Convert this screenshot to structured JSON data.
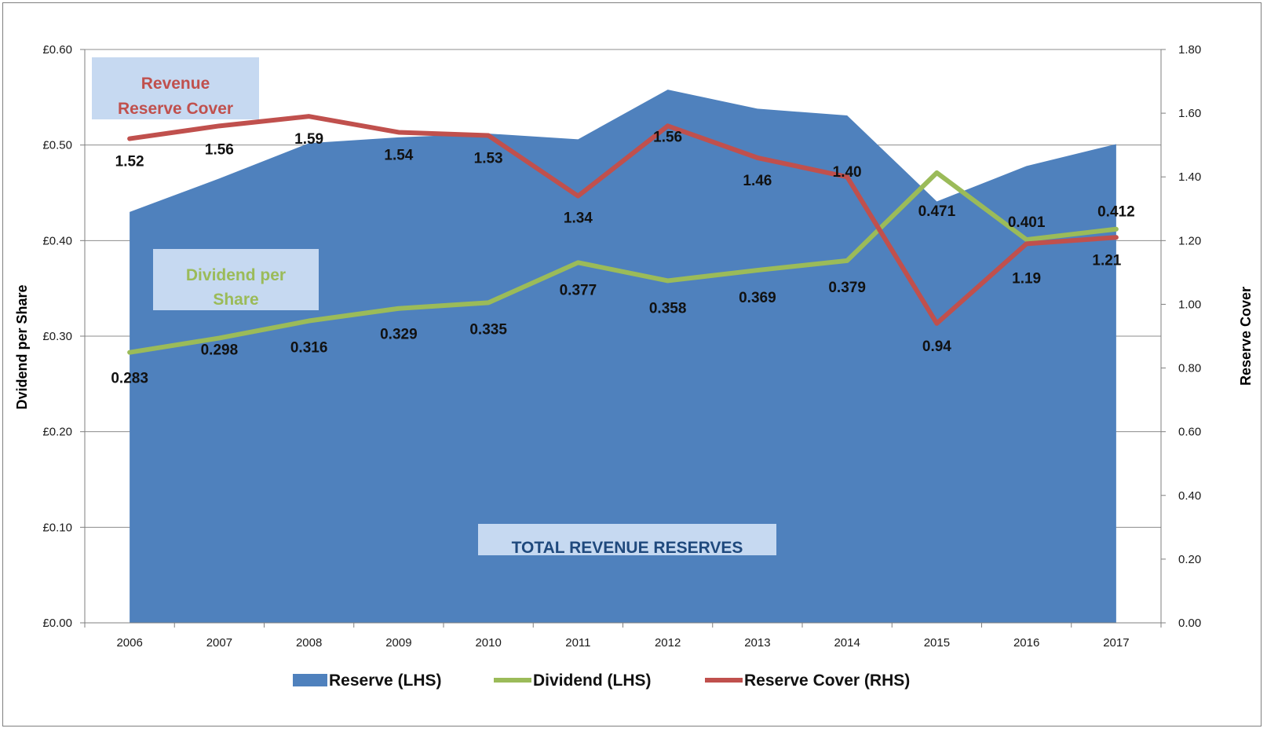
{
  "chart_data": {
    "type": "area",
    "categories": [
      "2006",
      "2007",
      "2008",
      "2009",
      "2010",
      "2011",
      "2012",
      "2013",
      "2014",
      "2015",
      "2016",
      "2017"
    ],
    "series": [
      {
        "name": "Reserve (LHS)",
        "kind": "area",
        "axis": "left",
        "color": "#4f81bd",
        "values": [
          0.43,
          0.465,
          0.502,
          0.508,
          0.512,
          0.506,
          0.558,
          0.538,
          0.531,
          0.441,
          0.478,
          0.501
        ]
      },
      {
        "name": "Dividend (LHS)",
        "kind": "line",
        "axis": "left",
        "color": "#9bbb59",
        "values": [
          0.283,
          0.298,
          0.316,
          0.329,
          0.335,
          0.377,
          0.358,
          0.369,
          0.379,
          0.471,
          0.401,
          0.412
        ],
        "labels": [
          "0.283",
          "0.298",
          "0.316",
          "0.329",
          "0.335",
          "0.377",
          "0.358",
          "0.369",
          "0.379",
          "0.471",
          "0.401",
          "0.412"
        ]
      },
      {
        "name": "Reserve Cover (RHS)",
        "kind": "line",
        "axis": "right",
        "color": "#c0504d",
        "values": [
          1.52,
          1.56,
          1.59,
          1.54,
          1.53,
          1.34,
          1.56,
          1.46,
          1.4,
          0.94,
          1.19,
          1.21
        ],
        "labels": [
          "1.52",
          "1.56",
          "1.59",
          "1.54",
          "1.53",
          "1.34",
          "1.56",
          "1.46",
          "1.40",
          "0.94",
          "1.19",
          "1.21"
        ]
      }
    ],
    "left_axis": {
      "title": "Dvidend per Share",
      "ylim": [
        0,
        0.6
      ],
      "ticks": [
        "£0.00",
        "£0.10",
        "£0.20",
        "£0.30",
        "£0.40",
        "£0.50",
        "£0.60"
      ]
    },
    "right_axis": {
      "title": "Reserve Cover",
      "ylim": [
        0,
        1.8
      ],
      "ticks": [
        "0.00",
        "0.20",
        "0.40",
        "0.60",
        "0.80",
        "1.00",
        "1.20",
        "1.40",
        "1.60",
        "1.80"
      ]
    },
    "annotations": [
      {
        "id": "cover",
        "lines": [
          "Revenue",
          "Reserve Cover"
        ],
        "color": "#c0504d",
        "box": "#c6d9f1"
      },
      {
        "id": "dividend",
        "lines": [
          "Dividend per",
          "Share"
        ],
        "color": "#9bbb59",
        "box": "#c6d9f1"
      },
      {
        "id": "reserves",
        "lines": [
          "TOTAL REVENUE RESERVES"
        ],
        "color": "#1f497d",
        "box": "#c6d9f1"
      }
    ],
    "grid": true,
    "legend": "bottom"
  }
}
